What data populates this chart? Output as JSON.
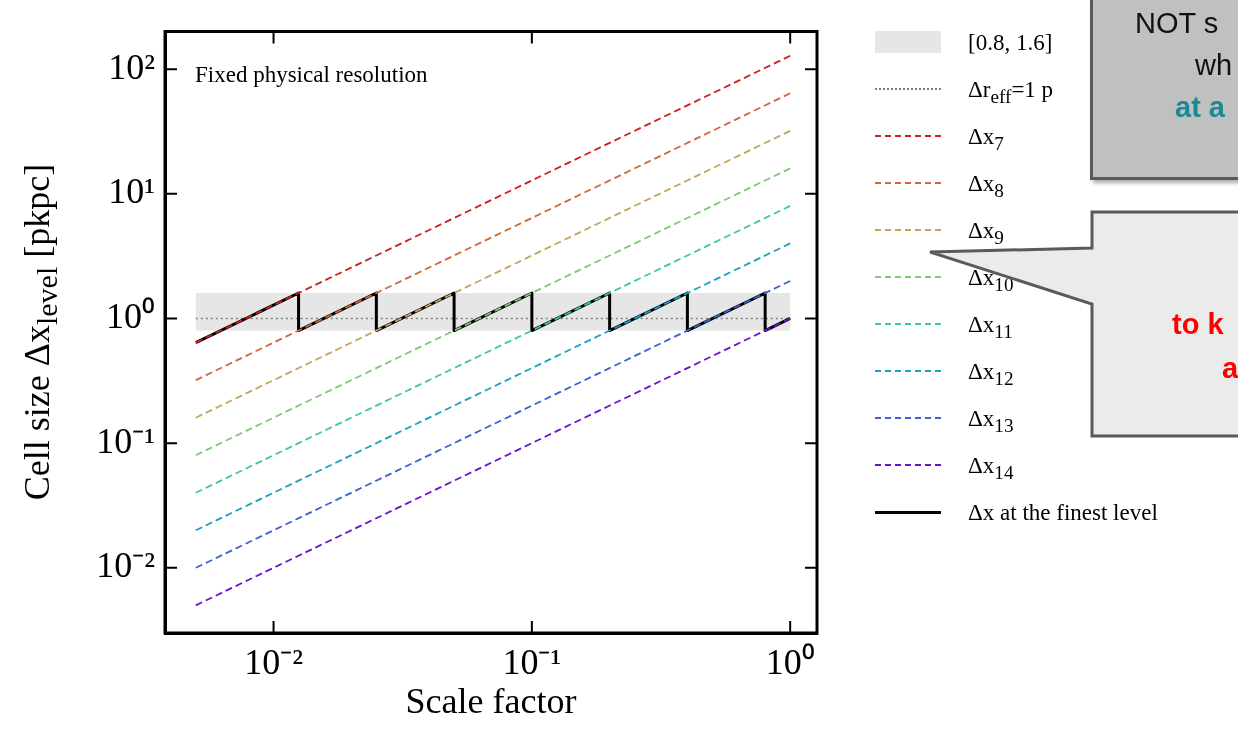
{
  "chart_data": {
    "type": "line",
    "xlabel": "Scale factor",
    "ylabel": "Cell size Δx$_{level}$ [pkpc]",
    "log": "xy",
    "xlim": [
      0.0038,
      1.27
    ],
    "ylim": [
      0.003,
      200
    ],
    "xticks": [
      {
        "value": 0.01,
        "label": "10⁻²"
      },
      {
        "value": 0.1,
        "label": "10⁻¹"
      },
      {
        "value": 1,
        "label": "10⁰"
      }
    ],
    "yticks": [
      {
        "value": 0.01,
        "label": "10⁻²"
      },
      {
        "value": 0.1,
        "label": "10⁻¹"
      },
      {
        "value": 1,
        "label": "10⁰"
      },
      {
        "value": 10,
        "label": "10¹"
      },
      {
        "value": 100,
        "label": "10²"
      }
    ],
    "grid": false,
    "legend": "right",
    "bands": [
      {
        "axis": "y",
        "from": 0.8,
        "to": 1.6,
        "label": "[0.8, 1.6]",
        "color": "#e6e6e6"
      }
    ],
    "ref_lines": [
      {
        "axis": "y",
        "value": 1,
        "label": "Δr$_{eff}$=1 p",
        "color": "#808080",
        "line_style": "dotted"
      }
    ],
    "series": [
      {
        "name": "Δx$_{7}$",
        "color": "#cc1f1f",
        "line_style": "dashed",
        "x": [
          0.005,
          1
        ],
        "values": [
          0.64,
          128
        ]
      },
      {
        "name": "Δx$_{8}$",
        "color": "#d0663a",
        "line_style": "dashed",
        "x": [
          0.005,
          1
        ],
        "values": [
          0.32,
          64
        ]
      },
      {
        "name": "Δx$_{9}$",
        "color": "#c4a55c",
        "line_style": "dashed",
        "x": [
          0.005,
          1
        ],
        "values": [
          0.16,
          32
        ]
      },
      {
        "name": "Δx$_{10}$",
        "color": "#80c878",
        "line_style": "dashed",
        "x": [
          0.005,
          1
        ],
        "values": [
          0.08,
          16
        ]
      },
      {
        "name": "Δx$_{11}$",
        "color": "#3ec8a0",
        "line_style": "dashed",
        "x": [
          0.005,
          1
        ],
        "values": [
          0.04,
          8
        ]
      },
      {
        "name": "Δx$_{12}$",
        "color": "#1aa0c0",
        "line_style": "dashed",
        "x": [
          0.005,
          1
        ],
        "values": [
          0.02,
          4
        ]
      },
      {
        "name": "Δx$_{13}$",
        "color": "#3a62d0",
        "line_style": "dashed",
        "x": [
          0.005,
          1
        ],
        "values": [
          0.01,
          2
        ]
      },
      {
        "name": "Δx$_{14}$",
        "color": "#6a14d0",
        "line_style": "dashed",
        "x": [
          0.005,
          1
        ],
        "values": [
          0.005,
          1
        ]
      },
      {
        "name": "Δx at the finest level",
        "color": "#000000",
        "line_style": "solid",
        "x": [
          0.005,
          0.0125,
          0.0125,
          0.025,
          0.025,
          0.05,
          0.05,
          0.1,
          0.1,
          0.2,
          0.2,
          0.4,
          0.4,
          0.8,
          0.8,
          1
        ],
        "values": [
          0.64,
          1.6,
          0.8,
          1.6,
          0.8,
          1.6,
          0.8,
          1.6,
          0.8,
          1.6,
          0.8,
          1.6,
          0.8,
          1.6,
          0.8,
          1
        ]
      }
    ],
    "annotations": [
      "Fixed physical resolution",
      "NOT s",
      "wh",
      "at a",
      "to k",
      "a"
    ]
  }
}
